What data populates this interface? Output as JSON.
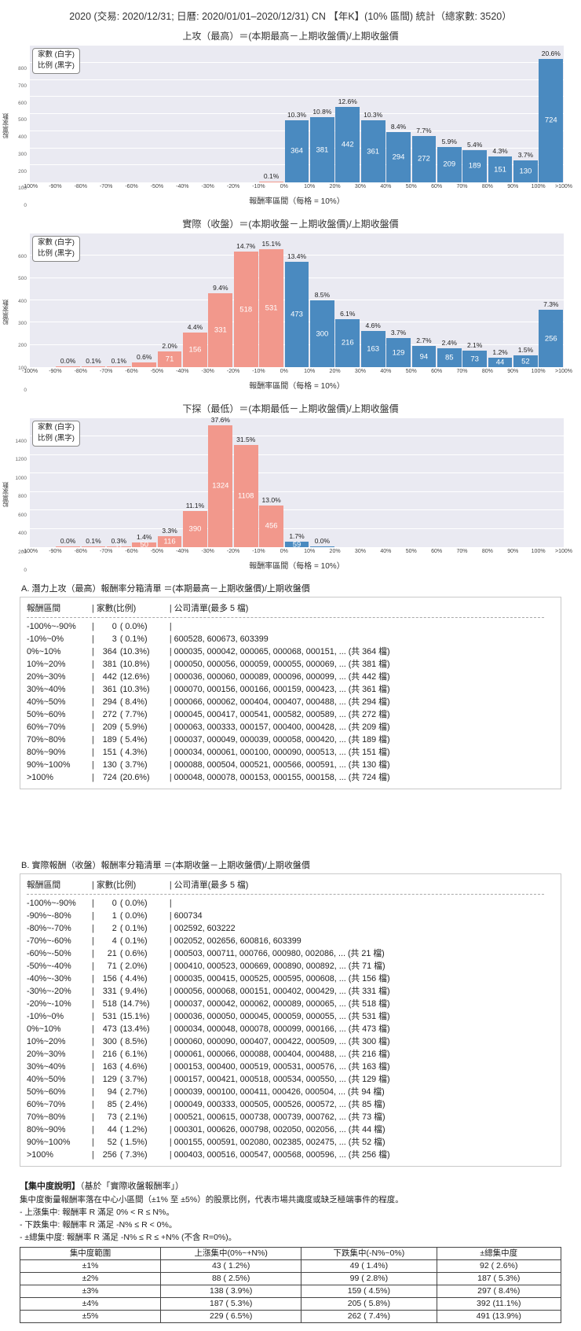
{
  "page_title": "2020 (交易: 2020/12/31; 日曆: 2020/01/01–2020/12/31) CN 【年K】(10% 區間) 統計（總家數: 3520）",
  "colors": {
    "up": "#4a8ac0",
    "down": "#f2988c",
    "plot_bg": "#eaeaf2",
    "grid": "#ffffff"
  },
  "chart_data": [
    {
      "type": "bar",
      "title": "上攻（最高）＝(本期最高－上期收盤價)/上期收盤價",
      "ylabel": "股票家數",
      "xlabel": "報酬率區間（每格 = 10%）",
      "legend": [
        "家數 (白字)",
        "比例 (黑字)"
      ],
      "ymax": 800,
      "ystep": 100,
      "xticks": [
        "-100%",
        "-90%",
        "-80%",
        "-70%",
        "-60%",
        "-50%",
        "-40%",
        "-30%",
        "-20%",
        "-10%",
        "0%",
        "10%",
        "20%",
        "30%",
        "40%",
        "50%",
        "60%",
        "70%",
        "80%",
        "90%",
        "100%",
        ">100%"
      ],
      "bins": [
        [
          0,
          null,
          0
        ],
        [
          0,
          null,
          0
        ],
        [
          0,
          null,
          0
        ],
        [
          0,
          null,
          0
        ],
        [
          0,
          null,
          0
        ],
        [
          0,
          null,
          0
        ],
        [
          0,
          null,
          0
        ],
        [
          0,
          null,
          0
        ],
        [
          0,
          null,
          0
        ],
        [
          3,
          "0.1%",
          0
        ],
        [
          364,
          "10.3%",
          1
        ],
        [
          381,
          "10.8%",
          1
        ],
        [
          442,
          "12.6%",
          1
        ],
        [
          361,
          "10.3%",
          1
        ],
        [
          294,
          "8.4%",
          1
        ],
        [
          272,
          "7.7%",
          1
        ],
        [
          209,
          "5.9%",
          1
        ],
        [
          189,
          "5.4%",
          1
        ],
        [
          151,
          "4.3%",
          1
        ],
        [
          130,
          "3.7%",
          1
        ],
        [
          724,
          "20.6%",
          1
        ]
      ]
    },
    {
      "type": "bar",
      "title": "實際（收盤）＝(本期收盤－上期收盤價)/上期收盤價",
      "ylabel": "股票家數",
      "xlabel": "報酬率區間（每格 = 10%）",
      "legend": [
        "家數 (白字)",
        "比例 (黑字)"
      ],
      "ymax": 600,
      "ystep": 100,
      "xticks": [
        "-100%",
        "-90%",
        "-80%",
        "-70%",
        "-60%",
        "-50%",
        "-40%",
        "-30%",
        "-20%",
        "-10%",
        "0%",
        "10%",
        "20%",
        "30%",
        "40%",
        "50%",
        "60%",
        "70%",
        "80%",
        "90%",
        "100%",
        ">100%"
      ],
      "bins": [
        [
          0,
          null,
          0
        ],
        [
          1,
          "0.0%",
          0
        ],
        [
          2,
          "0.1%",
          0
        ],
        [
          4,
          "0.1%",
          0
        ],
        [
          21,
          "0.6%",
          0
        ],
        [
          71,
          "2.0%",
          1
        ],
        [
          156,
          "4.4%",
          1
        ],
        [
          331,
          "9.4%",
          1
        ],
        [
          518,
          "14.7%",
          1
        ],
        [
          531,
          "15.1%",
          1
        ],
        [
          473,
          "13.4%",
          1
        ],
        [
          300,
          "8.5%",
          1
        ],
        [
          216,
          "6.1%",
          1
        ],
        [
          163,
          "4.6%",
          1
        ],
        [
          129,
          "3.7%",
          1
        ],
        [
          94,
          "2.7%",
          1
        ],
        [
          85,
          "2.4%",
          1
        ],
        [
          73,
          "2.1%",
          1
        ],
        [
          44,
          "1.2%",
          1
        ],
        [
          52,
          "1.5%",
          1
        ],
        [
          256,
          "7.3%",
          1
        ]
      ]
    },
    {
      "type": "bar",
      "title": "下探（最低）＝(本期最低－上期收盤價)/上期收盤價",
      "ylabel": "股票家數",
      "xlabel": "報酬率區間（每格 = 10%）",
      "legend": [
        "家數 (白字)",
        "比例 (黑字)"
      ],
      "ymax": 1400,
      "ystep": 200,
      "xticks": [
        "-100%",
        "-90%",
        "-80%",
        "-70%",
        "-60%",
        "-50%",
        "-40%",
        "-30%",
        "-20%",
        "-10%",
        "0%",
        "10%",
        "20%",
        "30%",
        "40%",
        "50%",
        "60%",
        "70%",
        "80%",
        "90%",
        "100%",
        ">100%"
      ],
      "bins": [
        [
          0,
          null,
          0
        ],
        [
          1,
          "0.0%",
          0
        ],
        [
          4,
          "0.1%",
          0
        ],
        [
          11,
          "0.3%",
          1
        ],
        [
          50,
          "1.4%",
          1
        ],
        [
          116,
          "3.3%",
          1
        ],
        [
          390,
          "11.1%",
          1
        ],
        [
          1324,
          "37.6%",
          1
        ],
        [
          1108,
          "31.5%",
          1
        ],
        [
          456,
          "13.0%",
          1
        ],
        [
          59,
          "1.7%",
          1
        ],
        [
          1,
          "0.0%",
          0
        ],
        [
          0,
          null,
          0
        ],
        [
          0,
          null,
          0
        ],
        [
          0,
          null,
          0
        ],
        [
          0,
          null,
          0
        ],
        [
          0,
          null,
          0
        ],
        [
          0,
          null,
          0
        ],
        [
          0,
          null,
          0
        ],
        [
          0,
          null,
          0
        ],
        [
          0,
          null,
          0
        ]
      ]
    }
  ],
  "sections": {
    "a": {
      "heading": "A. 潛力上攻（最高）報酬率分箱清單 ＝(本期最高－上期收盤價)/上期收盤價",
      "col_headers": [
        "報酬區間",
        "家數(比例)",
        "公司清單(最多 5 檔)"
      ],
      "rows": [
        [
          "-100%~-90%",
          "0",
          "( 0.0%)",
          ""
        ],
        [
          "-10%~0%",
          "3",
          "( 0.1%)",
          "600528, 600673, 603399"
        ],
        [
          "0%~10%",
          "364",
          "(10.3%)",
          "000035, 000042, 000065, 000068, 000151, ... (共 364 檔)"
        ],
        [
          "10%~20%",
          "381",
          "(10.8%)",
          "000050, 000056, 000059, 000055, 000069, ... (共 381 檔)"
        ],
        [
          "20%~30%",
          "442",
          "(12.6%)",
          "000036, 000060, 000089, 000096, 000099, ... (共 442 檔)"
        ],
        [
          "30%~40%",
          "361",
          "(10.3%)",
          "000070, 000156, 000166, 000159, 000423, ... (共 361 檔)"
        ],
        [
          "40%~50%",
          "294",
          "( 8.4%)",
          "000066, 000062, 000404, 000407, 000488, ... (共 294 檔)"
        ],
        [
          "50%~60%",
          "272",
          "( 7.7%)",
          "000045, 000417, 000541, 000582, 000589, ... (共 272 檔)"
        ],
        [
          "60%~70%",
          "209",
          "( 5.9%)",
          "000063, 000333, 000157, 000400, 000428, ... (共 209 檔)"
        ],
        [
          "70%~80%",
          "189",
          "( 5.4%)",
          "000037, 000049, 000039, 000058, 000420, ... (共 189 檔)"
        ],
        [
          "80%~90%",
          "151",
          "( 4.3%)",
          "000034, 000061, 000100, 000090, 000513, ... (共 151 檔)"
        ],
        [
          "90%~100%",
          "130",
          "( 3.7%)",
          "000088, 000504, 000521, 000566, 000591, ... (共 130 檔)"
        ],
        [
          ">100%",
          "724",
          "(20.6%)",
          "000048, 000078, 000153, 000155, 000158, ... (共 724 檔)"
        ]
      ]
    },
    "b": {
      "heading": "B. 實際報酬（收盤）報酬率分箱清單 ＝(本期收盤－上期收盤價)/上期收盤價",
      "col_headers": [
        "報酬區間",
        "家數(比例)",
        "公司清單(最多 5 檔)"
      ],
      "rows": [
        [
          "-100%~-90%",
          "0",
          "( 0.0%)",
          ""
        ],
        [
          "-90%~-80%",
          "1",
          "( 0.0%)",
          "600734"
        ],
        [
          "-80%~-70%",
          "2",
          "( 0.1%)",
          "002592, 603222"
        ],
        [
          "-70%~-60%",
          "4",
          "( 0.1%)",
          "002052, 002656, 600816, 603399"
        ],
        [
          "-60%~-50%",
          "21",
          "( 0.6%)",
          "000503, 000711, 000766, 000980, 002086, ... (共 21 檔)"
        ],
        [
          "-50%~-40%",
          "71",
          "( 2.0%)",
          "000410, 000523, 000669, 000890, 000892, ... (共 71 檔)"
        ],
        [
          "-40%~-30%",
          "156",
          "( 4.4%)",
          "000035, 000415, 000525, 000595, 000608, ... (共 156 檔)"
        ],
        [
          "-30%~-20%",
          "331",
          "( 9.4%)",
          "000056, 000068, 000151, 000402, 000429, ... (共 331 檔)"
        ],
        [
          "-20%~-10%",
          "518",
          "(14.7%)",
          "000037, 000042, 000062, 000089, 000065, ... (共 518 檔)"
        ],
        [
          "-10%~0%",
          "531",
          "(15.1%)",
          "000036, 000050, 000045, 000059, 000055, ... (共 531 檔)"
        ],
        [
          "0%~10%",
          "473",
          "(13.4%)",
          "000034, 000048, 000078, 000099, 000166, ... (共 473 檔)"
        ],
        [
          "10%~20%",
          "300",
          "( 8.5%)",
          "000060, 000090, 000407, 000422, 000509, ... (共 300 檔)"
        ],
        [
          "20%~30%",
          "216",
          "( 6.1%)",
          "000061, 000066, 000088, 000404, 000488, ... (共 216 檔)"
        ],
        [
          "30%~40%",
          "163",
          "( 4.6%)",
          "000153, 000400, 000519, 000531, 000576, ... (共 163 檔)"
        ],
        [
          "40%~50%",
          "129",
          "( 3.7%)",
          "000157, 000421, 000518, 000534, 000550, ... (共 129 檔)"
        ],
        [
          "50%~60%",
          "94",
          "( 2.7%)",
          "000039, 000100, 000411, 000426, 000504, ... (共 94 檔)"
        ],
        [
          "60%~70%",
          "85",
          "( 2.4%)",
          "000049, 000333, 000505, 000526, 000572, ... (共 85 檔)"
        ],
        [
          "70%~80%",
          "73",
          "( 2.1%)",
          "000521, 000615, 000738, 000739, 000762, ... (共 73 檔)"
        ],
        [
          "80%~90%",
          "44",
          "( 1.2%)",
          "000301, 000626, 000798, 002050, 002056, ... (共 44 檔)"
        ],
        [
          "90%~100%",
          "52",
          "( 1.5%)",
          "000155, 000591, 002080, 002385, 002475, ... (共 52 檔)"
        ],
        [
          ">100%",
          "256",
          "( 7.3%)",
          "000403, 000516, 000547, 000568, 000596, ... (共 256 檔)"
        ]
      ]
    }
  },
  "concentration": {
    "heading_bold": "【集中度說明】",
    "heading_rest": "（基於「實際收盤報酬率」）",
    "desc": "集中度衡量報酬率落在中心小區間（±1% 至 ±5%）的股票比例，代表市場共識度或缺乏極端事件的程度。",
    "bullets": [
      "- 上漲集中: 報酬率 R 滿足 0% < R ≤ N%。",
      "- 下跌集中: 報酬率 R 滿足 -N% ≤ R < 0%。",
      "- ±總集中度: 報酬率 R 滿足 -N% ≤ R ≤ +N% (不含 R=0%)。"
    ],
    "table": {
      "headers": [
        "集中度範圍",
        "上漲集中(0%~+N%)",
        "下跌集中(-N%~0%)",
        "±總集中度"
      ],
      "rows": [
        [
          "±1%",
          "43 ( 1.2%)",
          "49 ( 1.4%)",
          "92 ( 2.6%)"
        ],
        [
          "±2%",
          "88 ( 2.5%)",
          "99 ( 2.8%)",
          "187 ( 5.3%)"
        ],
        [
          "±3%",
          "138 ( 3.9%)",
          "159 ( 4.5%)",
          "297 ( 8.4%)"
        ],
        [
          "±4%",
          "187 ( 5.3%)",
          "205 ( 5.8%)",
          "392 (11.1%)"
        ],
        [
          "±5%",
          "229 ( 6.5%)",
          "262 ( 7.4%)",
          "491 (13.9%)"
        ]
      ]
    }
  }
}
